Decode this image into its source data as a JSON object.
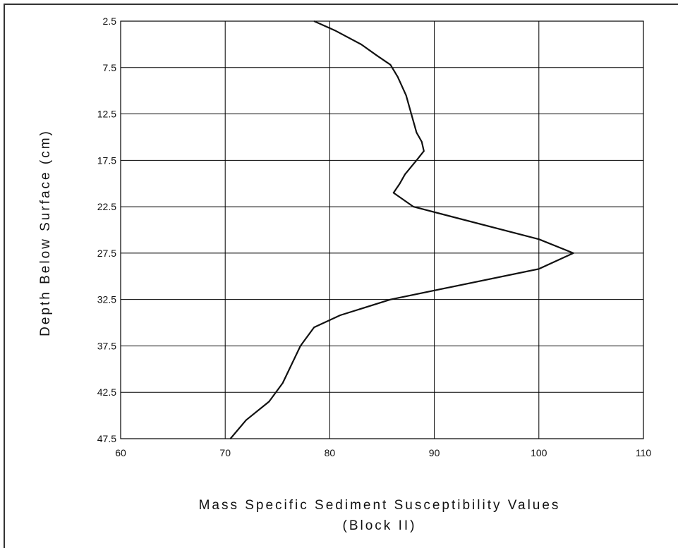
{
  "chart_data": {
    "type": "line",
    "orientation": "depth-profile",
    "title": "",
    "xlabel": "Mass Specific Sediment Susceptibility Values",
    "xlabel_line2": "(Block II)",
    "ylabel": "Depth Below Surface (cm)",
    "xlim": [
      60,
      110
    ],
    "ylim": [
      2.5,
      47.5
    ],
    "y_inverted": true,
    "grid": true,
    "legend": "none",
    "x_ticks": [
      "60",
      "70",
      "80",
      "90",
      "100",
      "110"
    ],
    "y_ticks": [
      "2.5",
      "7.5",
      "12.5",
      "17.5",
      "22.5",
      "27.5",
      "32.5",
      "37.5",
      "42.5",
      "47.5"
    ],
    "series": [
      {
        "points": [
          {
            "x": 78.5,
            "y": 2.5
          },
          {
            "x": 80.5,
            "y": 3.5
          },
          {
            "x": 83.0,
            "y": 5.0
          },
          {
            "x": 84.5,
            "y": 6.2
          },
          {
            "x": 85.8,
            "y": 7.2
          },
          {
            "x": 86.5,
            "y": 8.5
          },
          {
            "x": 87.3,
            "y": 10.5
          },
          {
            "x": 87.8,
            "y": 12.5
          },
          {
            "x": 88.3,
            "y": 14.5
          },
          {
            "x": 88.8,
            "y": 15.5
          },
          {
            "x": 89.0,
            "y": 16.5
          },
          {
            "x": 88.3,
            "y": 17.5
          },
          {
            "x": 87.2,
            "y": 19.0
          },
          {
            "x": 86.7,
            "y": 20.0
          },
          {
            "x": 86.1,
            "y": 21.0
          },
          {
            "x": 88.0,
            "y": 22.5
          },
          {
            "x": 100.0,
            "y": 26.0
          },
          {
            "x": 103.3,
            "y": 27.5
          },
          {
            "x": 100.0,
            "y": 29.2
          },
          {
            "x": 85.8,
            "y": 32.5
          },
          {
            "x": 81.0,
            "y": 34.2
          },
          {
            "x": 78.5,
            "y": 35.5
          },
          {
            "x": 77.2,
            "y": 37.5
          },
          {
            "x": 75.5,
            "y": 41.5
          },
          {
            "x": 74.2,
            "y": 43.5
          },
          {
            "x": 72.0,
            "y": 45.5
          },
          {
            "x": 70.5,
            "y": 47.5
          }
        ]
      }
    ]
  }
}
